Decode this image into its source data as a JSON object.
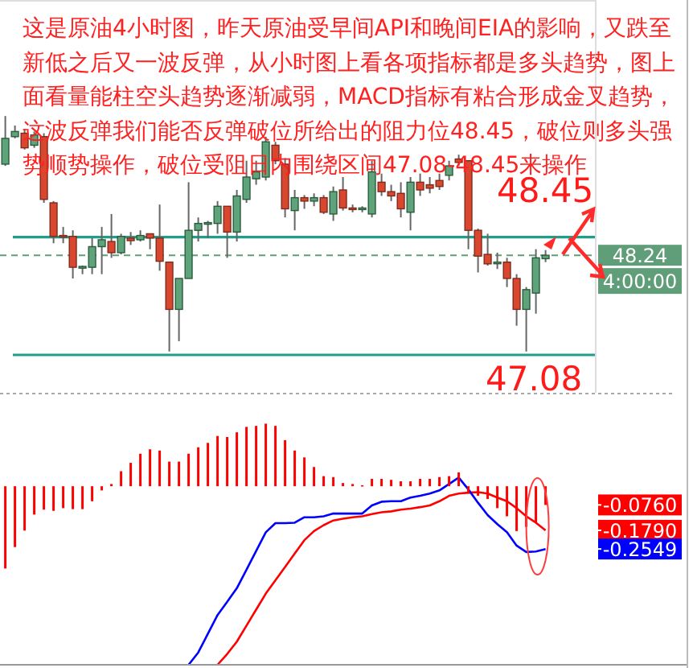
{
  "chart_data": [
    {
      "type": "candlestick",
      "annotations": [
        "这是原油4小时图，昨天原油受早间API和晚间EIA的影响，又跌至新低之后又一波反弹，从小时图上看各项指标都是多头趋势，图上面看量能柱空头趋势逐渐减弱，MACD指标有粘合形成金叉趋势，这波反弹我们能否反弹破位所给出的阻力位48.45，破位则多头强势顺势操作，破位受阻日内围绕区间47.08-48.45来操作",
        "4:00:00"
      ],
      "categories": [
        null,
        null,
        null,
        null,
        null,
        null,
        null,
        null,
        null,
        null,
        null,
        null,
        null,
        null,
        null,
        null,
        null,
        null,
        null,
        null,
        null,
        null,
        null,
        null,
        null,
        null,
        null,
        null,
        null,
        null,
        null,
        null,
        null,
        null,
        null,
        null,
        null,
        null,
        null,
        null,
        null,
        null,
        null,
        null,
        null,
        null,
        null,
        null,
        null,
        null,
        null,
        null,
        null,
        null,
        null,
        null,
        null
      ],
      "ohlc": [
        [
          49.3,
          49.86,
          49.28,
          49.6
        ],
        [
          49.62,
          49.75,
          49.6,
          49.68
        ],
        [
          49.66,
          49.71,
          49.47,
          49.49
        ],
        [
          49.52,
          49.68,
          49.49,
          49.64
        ],
        [
          49.62,
          49.66,
          48.85,
          48.89
        ],
        [
          48.85,
          48.87,
          48.38,
          48.46
        ],
        [
          48.47,
          48.57,
          48.38,
          48.46
        ],
        [
          48.46,
          48.53,
          47.97,
          48.1
        ],
        [
          48.09,
          48.12,
          48.02,
          48.11
        ],
        [
          48.1,
          48.44,
          48.02,
          48.34
        ],
        [
          48.34,
          48.57,
          48.02,
          48.42
        ],
        [
          48.4,
          48.72,
          48.21,
          48.27
        ],
        [
          48.27,
          48.49,
          48.25,
          48.46
        ],
        [
          48.44,
          48.51,
          48.36,
          48.41
        ],
        [
          48.42,
          48.53,
          48.4,
          48.47
        ],
        [
          48.49,
          48.49,
          48.31,
          48.44
        ],
        [
          48.44,
          48.83,
          48.06,
          48.17
        ],
        [
          48.16,
          48.16,
          47.12,
          47.61
        ],
        [
          47.61,
          47.97,
          47.24,
          47.97
        ],
        [
          47.97,
          49.09,
          47.97,
          48.53
        ],
        [
          48.53,
          48.68,
          48.4,
          48.61
        ],
        [
          48.61,
          48.64,
          48.44,
          48.62
        ],
        [
          48.61,
          48.87,
          48.49,
          48.81
        ],
        [
          48.81,
          48.81,
          48.21,
          48.51
        ],
        [
          48.51,
          49.0,
          48.4,
          48.93
        ],
        [
          48.89,
          49.34,
          48.85,
          49.15
        ],
        [
          49.13,
          49.34,
          49.06,
          49.21
        ],
        [
          49.15,
          49.62,
          49.11,
          49.56
        ],
        [
          49.52,
          49.56,
          49.3,
          49.34
        ],
        [
          49.3,
          49.37,
          48.68,
          48.78
        ],
        [
          48.76,
          49.0,
          48.53,
          48.91
        ],
        [
          48.91,
          48.94,
          48.78,
          48.87
        ],
        [
          48.87,
          48.96,
          48.81,
          48.91
        ],
        [
          48.91,
          48.94,
          48.72,
          48.74
        ],
        [
          48.72,
          49.04,
          48.64,
          48.98
        ],
        [
          49.0,
          49.15,
          48.76,
          48.79
        ],
        [
          48.79,
          48.83,
          48.74,
          48.78
        ],
        [
          48.78,
          48.81,
          48.74,
          48.79
        ],
        [
          48.72,
          49.34,
          48.68,
          49.21
        ],
        [
          49.09,
          49.19,
          48.93,
          48.98
        ],
        [
          48.98,
          49.06,
          48.87,
          48.93
        ],
        [
          48.96,
          49.09,
          48.68,
          48.78
        ],
        [
          48.74,
          49.15,
          48.53,
          49.09
        ],
        [
          49.09,
          49.19,
          48.93,
          49.0
        ],
        [
          49.06,
          49.15,
          48.96,
          49.02
        ],
        [
          49.11,
          49.19,
          49.0,
          49.04
        ],
        [
          49.17,
          49.34,
          49.11,
          49.28
        ],
        [
          49.36,
          49.41,
          49.28,
          49.32
        ],
        [
          49.34,
          49.34,
          48.31,
          48.53
        ],
        [
          48.53,
          48.55,
          48.04,
          48.23
        ],
        [
          48.25,
          48.49,
          48.12,
          48.14
        ],
        [
          48.16,
          48.27,
          48.08,
          48.16
        ],
        [
          48.16,
          48.21,
          47.87,
          47.97
        ],
        [
          47.97,
          48.02,
          47.42,
          47.61
        ],
        [
          47.61,
          47.87,
          47.12,
          47.84
        ],
        [
          47.8,
          48.31,
          47.56,
          48.21
        ],
        [
          48.2,
          48.3,
          48.16,
          48.24
        ]
      ],
      "ylim": [
        46.64,
        51.21
      ],
      "ref_lines": [
        {
          "axis": "y",
          "value": 48.45,
          "label": "48.45",
          "color": "#1f9e89"
        },
        {
          "axis": "y",
          "value": 47.08,
          "label": "47.08",
          "color": "#1f9e89"
        },
        {
          "axis": "y",
          "value": 48.24,
          "label": "48.24",
          "color": "#5f9e78",
          "line_style": "dashed"
        }
      ]
    },
    {
      "type": "bar",
      "categories": [
        null,
        null,
        null,
        null,
        null,
        null,
        null,
        null,
        null,
        null,
        null,
        null,
        null,
        null,
        null,
        null,
        null,
        null,
        null,
        null,
        null,
        null,
        null,
        null,
        null,
        null,
        null,
        null,
        null,
        null,
        null,
        null,
        null,
        null,
        null,
        null,
        null,
        null,
        null,
        null,
        null,
        null,
        null,
        null,
        null,
        null,
        null,
        null,
        null,
        null,
        null,
        null,
        null,
        null,
        null,
        null,
        null
      ],
      "series": [
        {
          "type": "bar",
          "color": "#ff0000",
          "values": [
            -0.334,
            -0.247,
            -0.18,
            -0.115,
            -0.095,
            -0.1,
            -0.089,
            -0.093,
            -0.093,
            -0.061,
            -0.017,
            0.009,
            0.061,
            0.095,
            0.132,
            0.15,
            0.145,
            0.1,
            0.1,
            0.132,
            0.158,
            0.176,
            0.204,
            0.2,
            0.219,
            0.241,
            0.245,
            0.254,
            0.245,
            0.187,
            0.145,
            0.117,
            0.078,
            0.041,
            0.037,
            0.013,
            0.009,
            0.004,
            0.03,
            0.03,
            0.026,
            0.02,
            0.02,
            0.03,
            0.03,
            0.037,
            0.041,
            0.056,
            -0.03,
            -0.039,
            -0.052,
            -0.089,
            -0.122,
            -0.182,
            -0.165,
            -0.148,
            -0.076
          ]
        },
        {
          "type": "line",
          "color": "#ff0000",
          "values": [
            null,
            null,
            null,
            null,
            null,
            null,
            null,
            null,
            null,
            null,
            null,
            null,
            null,
            null,
            null,
            null,
            null,
            null,
            null,
            null,
            null,
            null,
            -0.725,
            -0.681,
            -0.631,
            -0.566,
            -0.501,
            -0.436,
            -0.382,
            -0.328,
            -0.273,
            -0.219,
            -0.182,
            -0.158,
            -0.139,
            -0.132,
            -0.126,
            -0.122,
            -0.113,
            -0.106,
            -0.102,
            -0.095,
            -0.091,
            -0.085,
            -0.078,
            -0.061,
            -0.039,
            -0.03,
            -0.026,
            -0.024,
            -0.03,
            -0.046,
            -0.061,
            -0.089,
            -0.122,
            -0.148,
            -0.179
          ]
        },
        {
          "type": "line",
          "color": "#0000ff",
          "values": [
            null,
            null,
            null,
            null,
            null,
            null,
            null,
            null,
            null,
            null,
            null,
            null,
            null,
            null,
            null,
            null,
            null,
            null,
            null,
            -0.725,
            -0.675,
            -0.599,
            -0.523,
            -0.469,
            -0.414,
            -0.339,
            -0.263,
            -0.187,
            -0.15,
            -0.15,
            -0.148,
            -0.126,
            -0.126,
            -0.122,
            -0.111,
            -0.111,
            -0.111,
            -0.111,
            -0.078,
            -0.063,
            -0.061,
            -0.061,
            -0.046,
            -0.039,
            -0.03,
            -0.017,
            0.009,
            0.035,
            -0.013,
            -0.067,
            -0.117,
            -0.154,
            -0.187,
            -0.241,
            -0.267,
            -0.265,
            -0.2549
          ]
        }
      ],
      "ylim": [
        -0.725,
        0.373
      ],
      "yticks": [
        {
          "value": -0.076,
          "label": "-0.0760"
        },
        {
          "value": -0.179,
          "label": "-0.1790"
        },
        {
          "value": -0.2549,
          "label": "-0.2549"
        }
      ],
      "tick_labels": "y"
    }
  ]
}
